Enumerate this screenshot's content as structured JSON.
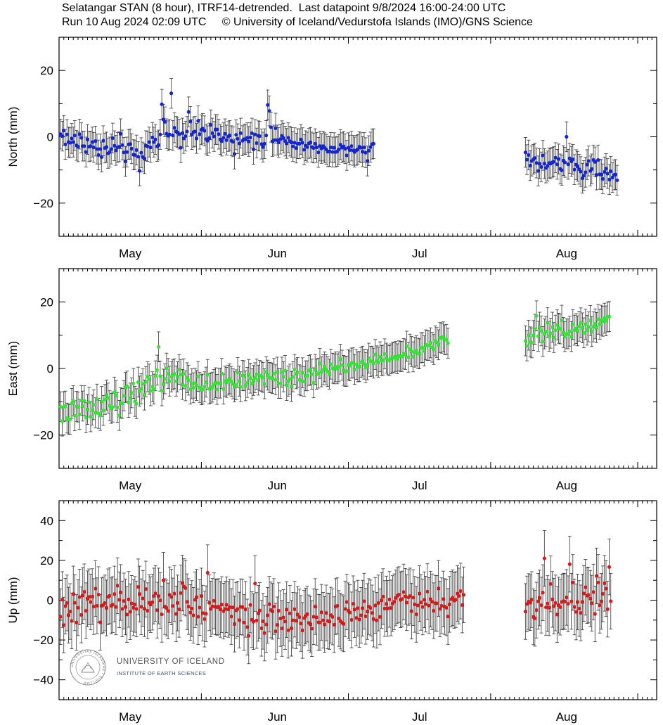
{
  "header": {
    "line1": "Selatangar STAN (8 hour), ITRF14-detrended.  Last datapoint 9/8/2024 16:00-24:00 UTC",
    "line2": "Run 10 Aug 2024 02:09 UTC     © University of Iceland/Vedurstofa Islands (IMO)/GNS Science"
  },
  "logo": {
    "name": "UNIVERSITY OF ICELAND",
    "subtitle": "INSTITUTE OF EARTH SCIENCES",
    "seal_text": "UNIVERSITAS ISLANDIAE • SIGILLUM"
  },
  "chart_data": [
    {
      "type": "scatter",
      "ylabel": "North (mm)",
      "ylim": [
        -30,
        30
      ],
      "yticks": [
        -20,
        0,
        20
      ],
      "xlim": [
        0,
        126
      ],
      "xlabel": "",
      "xticks": [
        {
          "label": "May",
          "day": 15
        },
        {
          "label": "Jun",
          "day": 46
        },
        {
          "label": "Jul",
          "day": 76
        },
        {
          "label": "Aug",
          "day": 107
        }
      ],
      "month_boundaries": [
        30,
        61,
        91,
        122
      ],
      "color": "#1426d2",
      "error_bar": 4.5,
      "gap_days": [
        92,
        98
      ],
      "series": [
        {
          "x_start": 0.33,
          "x_step": 0.3333,
          "values": [
            0.8,
            0.2,
            1.9,
            -2.3,
            0.7,
            -1.6,
            -1.8,
            -0.5,
            -1.6,
            0.4,
            -2.6,
            -3,
            0.8,
            -0.3,
            -2.8,
            -2.8,
            -4.6,
            -0.8,
            -3,
            -2.8,
            -1.6,
            -3.2,
            -1.3,
            -3.7,
            -5.5,
            -3.7,
            -6.1,
            -1.2,
            -3.4,
            -3.1,
            -5,
            -4.6,
            -3.7,
            -0.4,
            -2.7,
            -4.1,
            -3.2,
            -3,
            0.9,
            -2.5,
            -4.7,
            -7.4,
            -4.6,
            -2.3,
            -2.2,
            -3.6,
            -5.4,
            -5.5,
            -4,
            -6,
            -10.3,
            -4.8,
            -6.1,
            -6.6,
            -2.7,
            -2.9,
            -1.6,
            -3.2,
            -0.2,
            -1.6,
            -0.8,
            -2.9,
            -2.5,
            0.7,
            9.8,
            5.2,
            4.5,
            0.9,
            0.3,
            0.7,
            13.1,
            0.4,
            2.7,
            1.6,
            1.3,
            0.8,
            -3.3,
            1.1,
            -0.5,
            0.2,
            1.6,
            7.5,
            4.6,
            0.7,
            1.4,
            1.6,
            -0.5,
            4.8,
            0.8,
            2.1,
            2.5,
            1.8,
            -0.7,
            -1.2,
            -0.4,
            3.6,
            1.1,
            0.1,
            2.2,
            2.2,
            0.8,
            -0.8,
            -1.3,
            -0.3,
            0.9,
            -1,
            0.1,
            0.4,
            -1.2,
            -1.5,
            -5.2,
            0.6,
            -0.6,
            -2,
            1.1,
            -1.2,
            -0.7,
            -0.8,
            -0.3,
            -1.4,
            -0.2,
            1.1,
            -3.8,
            0.7,
            -1.9,
            0.3,
            0.2,
            -2.2,
            -3.1,
            -2.1,
            0.4,
            9.6,
            7.8,
            2.9,
            -1.4,
            -1,
            2.6,
            -1,
            -1.7,
            -0.7,
            0.3,
            -0.4,
            -1.3,
            -2,
            -0.3,
            -1.3,
            -1.7,
            -2.9,
            -1.8,
            -3.4,
            -2.1,
            -2.1,
            -0.8,
            -1.8,
            -3.9,
            -2.7,
            -3.1,
            -2,
            -1.7,
            -3.1,
            -3.4,
            -2.1,
            -3.2,
            -4.7,
            -2.8,
            -3.5,
            -2.8,
            -3.3,
            -3.8,
            -4.5,
            -4.4,
            -3.2,
            -4.6,
            -3.3,
            -4.6,
            -4.4,
            -3.8,
            -2.4,
            -3.3,
            -2.9,
            -3.6,
            -5.6,
            -3.3,
            -4,
            -2.8,
            -4.1,
            -4.6,
            -4.1,
            -3.8,
            -3,
            -3.3,
            -4.5,
            -3.2,
            -4.8,
            -7.3,
            -4.2,
            -3.1,
            -2.2,
            -2.1
          ]
        },
        {
          "x_start": 98.33,
          "x_step": 0.3333,
          "values": [
            -4.7,
            -6.9,
            -5.5,
            -8.7,
            -7.3,
            -6.8,
            -6.4,
            -7.9,
            -10.3,
            -8.1,
            -9.1,
            -5.6,
            -8.1,
            -9.4,
            -8.8,
            -7.9,
            -8.1,
            -7.7,
            -7.5,
            -6.3,
            -8.3,
            -6.7,
            -9.7,
            -10.1,
            -7.2,
            -7.7,
            0,
            -8.3,
            -6.5,
            -7.4,
            -6.8,
            -9.9,
            -8.4,
            -8.9,
            -9.8,
            -10.5,
            -12.5,
            -11.7,
            -10.7,
            -8.4,
            -7.3,
            -10.3,
            -9.7,
            -7,
            -7.6,
            -11.5,
            -7,
            -11.3,
            -11.4,
            -12.7,
            -10.6,
            -9.6,
            -11.1,
            -12.9,
            -10.4,
            -12.3,
            -11.5,
            -11.4,
            -13.1
          ]
        }
      ]
    },
    {
      "type": "scatter",
      "ylabel": "East (mm)",
      "ylim": [
        -30,
        30
      ],
      "yticks": [
        -20,
        0,
        20
      ],
      "xlim": [
        0,
        126
      ],
      "xlabel": "",
      "xticks": [
        {
          "label": "May",
          "day": 15
        },
        {
          "label": "Jun",
          "day": 46
        },
        {
          "label": "Jul",
          "day": 76
        },
        {
          "label": "Aug",
          "day": 107
        }
      ],
      "month_boundaries": [
        30,
        61,
        91,
        122
      ],
      "color": "#33e633",
      "error_bar": 4.5,
      "gap_days": [
        92,
        98
      ],
      "series": [
        {
          "x_start": 0.33,
          "x_step": 0.3333,
          "values": [
            -11.5,
            -15.8,
            -11.5,
            -11.3,
            -14.9,
            -15.2,
            -15.3,
            -10.5,
            -9.7,
            -14.2,
            -11.4,
            -11.6,
            -13.8,
            -9.6,
            -11.3,
            -9.7,
            -14.8,
            -12.3,
            -10.1,
            -14.5,
            -12.5,
            -10.9,
            -13.3,
            -9.2,
            -13.5,
            -14.1,
            -9.9,
            -12.6,
            -9.3,
            -8,
            -8.9,
            -11.2,
            -12,
            -11.6,
            -7.1,
            -8.1,
            -11.7,
            -14.1,
            -10.3,
            -10.5,
            -8.2,
            -5.7,
            -5.3,
            -10.2,
            -8.9,
            -7.3,
            -4.5,
            -9.9,
            -10.6,
            -4.1,
            -6.8,
            -6.1,
            -4.6,
            -8,
            -4,
            -2.5,
            -3.2,
            -6.7,
            -5.5,
            -6.2,
            -2.2,
            -0.5,
            6.5,
            -2.3,
            -6.7,
            -4.7,
            -3.1,
            0.1,
            -1.5,
            -3.8,
            -2.5,
            -1.9,
            -1.6,
            -3.8,
            -2.5,
            -0.3,
            -1.8,
            -4.8,
            -1.6,
            -5.2,
            -2.8,
            -3.5,
            -6.2,
            -4.6,
            -5.8,
            -4.4,
            -5.1,
            -2.4,
            -5.7,
            -6.4,
            -6.2,
            -5.5,
            -4.1,
            -1.8,
            -6.1,
            -5.9,
            -5.6,
            -4.8,
            -4.3,
            -6.3,
            -4.4,
            -4.4,
            -1.5,
            -6.2,
            -3.8,
            -4.2,
            -3.5,
            -3.1,
            -3.9,
            -4.6,
            -5.5,
            -4.9,
            -1.2,
            -3.8,
            -5.5,
            -2.1,
            -2.2,
            -5.2,
            -4.2,
            -1.8,
            -2.9,
            -4.6,
            -3.6,
            -2.8,
            -1.7,
            -3.5,
            -2.1,
            -2.4,
            -2.7,
            -4.6,
            -1,
            -2,
            -2.7,
            -2.8,
            -3,
            -1.5,
            -3.4,
            -1.1,
            -4.5,
            -4.5,
            -1.1,
            -2.5,
            -0.6,
            -5.1,
            -3.8,
            -3.2,
            -5.4,
            -2.5,
            -0.3,
            -1.6,
            -1.2,
            -3.4,
            -3.7,
            -1.3,
            -3.9,
            -2.2,
            -2.2,
            -0.6,
            -0.4,
            -1.7,
            -4.3,
            -0.3,
            -1.7,
            -1.4,
            1.5,
            -1,
            -0.4,
            0.5,
            -0.4,
            -0.9,
            -1.7,
            1.3,
            0.1,
            -0.1,
            0.5,
            -0.1,
            0.5,
            2.8,
            1,
            -0.6,
            -0.9,
            -0.8,
            1.1,
            0.8,
            1.6,
            1.7,
            -0.3,
            1.2,
            0.5,
            0.6,
            1.8,
            2.2,
            1.3,
            0.3,
            1.1,
            3.1,
            2.1,
            2.2,
            1.6,
            4.2,
            2.3,
            1.9,
            3.5,
            2.4,
            2.5,
            4.4,
            3.1,
            2.6,
            2.4,
            2.9,
            3.4,
            3.2,
            3.6,
            2.9,
            3.8,
            3.6,
            3.6,
            4.5,
            4.2,
            6.7,
            3.4,
            5.8,
            5.1,
            3.5,
            4.9,
            5.3,
            4.6,
            4.4,
            6.2,
            6.3,
            5.3,
            7.1,
            6.9,
            6.9,
            7.7,
            6.4,
            5.7,
            8.3,
            7.8,
            7.1,
            9.3,
            9.1,
            9.5,
            8.6,
            8.7,
            7.6
          ]
        },
        {
          "x_start": 98.33,
          "x_step": 0.3333,
          "values": [
            8.3,
            6.8,
            10,
            8,
            7.7,
            9.9,
            11.8,
            15.8,
            9.7,
            12.4,
            11.3,
            8.1,
            10.4,
            11.1,
            13.8,
            9.7,
            10.6,
            12.4,
            9.3,
            11.5,
            13.1,
            12.1,
            11.9,
            14.5,
            10.8,
            9.6,
            10.4,
            10.4,
            11.2,
            9.6,
            13.2,
            11.5,
            12,
            11.3,
            12.7,
            13.7,
            12.2,
            10.7,
            13.3,
            11.5,
            12.5,
            14.4,
            11.1,
            12.5,
            13.4,
            12.3,
            14.8,
            13.3,
            14.5,
            14.2,
            15.1,
            14.3,
            15.5,
            15.6
          ]
        }
      ]
    },
    {
      "type": "scatter",
      "ylabel": "Up (mm)",
      "ylim": [
        -50,
        50
      ],
      "yticks": [
        -40,
        -20,
        0,
        20,
        40
      ],
      "xlim": [
        0,
        126
      ],
      "xlabel": "",
      "xticks": [
        {
          "label": "May",
          "day": 15
        },
        {
          "label": "Jun",
          "day": 46
        },
        {
          "label": "Jul",
          "day": 76
        },
        {
          "label": "Aug",
          "day": 107
        }
      ],
      "month_boundaries": [
        30,
        61,
        91,
        122
      ],
      "color": "#d81a1a",
      "error_bar": 14,
      "gap_days": [
        92,
        98
      ],
      "series": [
        {
          "x_start": 0.33,
          "x_step": 0.3333,
          "values": [
            -8.3,
            0.3,
            -12.5,
            -3,
            -1.4,
            -7.5,
            -5.7,
            -10.4,
            3.1,
            -1.3,
            -11.2,
            -3.8,
            1.6,
            -7.4,
            2.3,
            4.2,
            -5.3,
            0.7,
            1.7,
            -0.9,
            1.8,
            -3.2,
            5.8,
            -2.8,
            2.8,
            -11.1,
            -2.8,
            -2.4,
            -1.4,
            -3.9,
            1.7,
            2.2,
            -2.8,
            -2.2,
            3.1,
            -3.4,
            7.3,
            0.2,
            3.9,
            -4.4,
            -0.4,
            -3.4,
            -7.2,
            0.4,
            -5.8,
            -1.6,
            -3.8,
            -2.1,
            -4.4,
            6.7,
            3.1,
            -3.3,
            0.9,
            -4.3,
            5.6,
            -5.3,
            -1.3,
            -2.2,
            -1,
            2.1,
            3.4,
            -5,
            2.1,
            -0.1,
            -7.1,
            10,
            -3.2,
            -3.9,
            -5.4,
            2.7,
            1.6,
            -2.9,
            3.3,
            -6.9,
            -1.4,
            -4.6,
            3.6,
            8.6,
            6.8,
            6.1,
            -0.8,
            -3.2,
            -6.2,
            -4.2,
            -7.6,
            0.2,
            1.5,
            -8.3,
            -3.7,
            2.1,
            -6.5,
            -9.5,
            -6.8,
            13.8,
            -1.3,
            -4.4,
            -3.1,
            -0.3,
            -3.3,
            -3.6,
            -3.2,
            -4.6,
            -2.2,
            -5.5,
            -4.4,
            -2.3,
            -4.6,
            -3.5,
            -8.2,
            -3.6,
            -12,
            -5.1,
            -4.4,
            -10,
            -3.3,
            -3.5,
            -11.2,
            -4.6,
            -13.5,
            -17.9,
            -2.4,
            -9.8,
            -10.8,
            8.4,
            -10.2,
            -6.6,
            -5.2,
            -14.1,
            -10.6,
            -16.5,
            -12.2,
            -7.6,
            -2,
            -4.9,
            -5.6,
            -3.2,
            -15.6,
            -12.4,
            -5.3,
            -9.2,
            -14.2,
            -8.7,
            -10.7,
            -4.7,
            -15.1,
            -6.6,
            -14.1,
            -10.1,
            -4.5,
            -10.3,
            -7.2,
            -8.5,
            -11.7,
            -15.2,
            -9,
            -8,
            -7,
            -11.4,
            -12.1,
            -14.3,
            -8.3,
            -3.2,
            -8.6,
            -11.1,
            -11.2,
            -6.1,
            -10.1,
            -12.2,
            -6.4,
            -10.4,
            -10.7,
            -7.5,
            -8.4,
            -12.3,
            -3.2,
            -2.8,
            -9.2,
            -10.5,
            -11.3,
            -11.9,
            -4.4,
            -0.9,
            -5.3,
            -6.2,
            -9.9,
            -1.8,
            -4.7,
            -8.9,
            -4,
            -9.7,
            -7.6,
            -4,
            -0.5,
            -8.1,
            -5.7,
            -3.2,
            -3.9,
            -6.4,
            -9.5,
            -2.6,
            -10.1,
            -1.4,
            -8.4,
            -0.1,
            1.8,
            -4.2,
            -1.9,
            -4.1,
            0.4,
            -3.9,
            -1.7,
            -0.8,
            1.1,
            2.2,
            2.8,
            0.2,
            0.6,
            4.1,
            1.9,
            -1.2,
            1.4,
            2.1,
            -5.5,
            1.3,
            -2.1,
            -7.1,
            -2.6,
            3.3,
            -1.1,
            -3.4,
            0.2,
            -2,
            4.3,
            -2.7,
            0.5,
            -0.8,
            -5.3,
            -1.5,
            -1.6,
            5.9,
            -4.4,
            -2.8,
            0.6,
            -3.2,
            -3.8,
            -8.2,
            -2.1,
            0.5,
            1.2,
            -0.2,
            0.3,
            3.3,
            2.1,
            4.6,
            -2.4,
            2.7
          ]
        },
        {
          "x_start": 98.33,
          "x_step": 0.3333,
          "values": [
            -5.7,
            -1.9,
            -0.7,
            -1.2,
            0.3,
            -8.4,
            -9.1,
            -5,
            -0.6,
            1.1,
            -2.5,
            3.8,
            21,
            -3.6,
            -1.7,
            -3.8,
            8.2,
            0.4,
            -3,
            -1.4,
            -7.2,
            -2.5,
            -3.5,
            -0.9,
            -0.5,
            -0.7,
            1.4,
            -1.8,
            18.1,
            -0.6,
            8.9,
            -3.4,
            -5.9,
            -0.9,
            -4.2,
            -6.4,
            -0.9,
            3.4,
            6.5,
            2.3,
            2.6,
            0.8,
            -1.5,
            4.1,
            -6.9,
            12.2,
            8.9,
            -2.5,
            -0.6,
            3.2,
            8.5,
            5.8,
            -4.5,
            16.7,
            -0.5
          ]
        }
      ]
    }
  ]
}
